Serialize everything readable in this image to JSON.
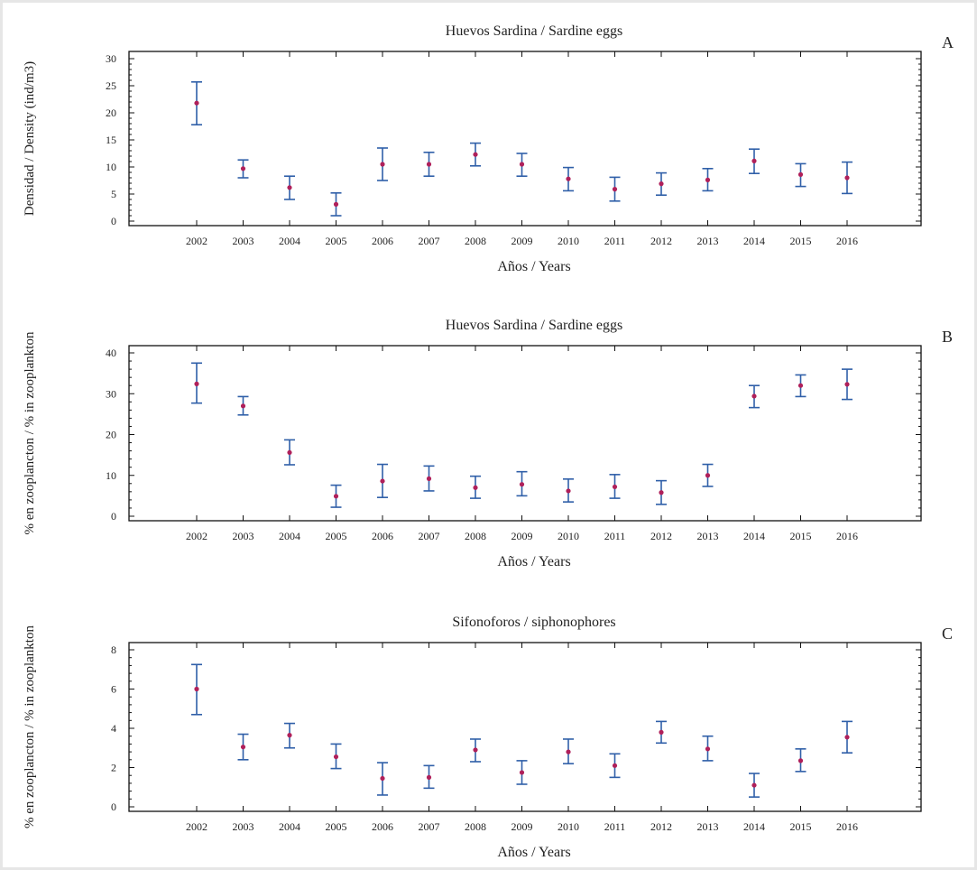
{
  "chart_data": [
    {
      "type": "scatter",
      "panel": "A",
      "title": "Huevos Sardina / Sardine eggs",
      "xlabel": "Años / Years",
      "ylabel": "Densidad / Density (ind/m3)",
      "categories": [
        "2002",
        "2003",
        "2004",
        "2005",
        "2006",
        "2007",
        "2008",
        "2009",
        "2010",
        "2011",
        "2012",
        "2013",
        "2014",
        "2015",
        "2016"
      ],
      "ylim": [
        0,
        30
      ],
      "yticks": [
        0,
        5,
        10,
        15,
        20,
        25,
        30
      ],
      "series": [
        {
          "mean": [
            21.8,
            9.7,
            6.2,
            3.1,
            10.5,
            10.5,
            12.3,
            10.5,
            7.8,
            5.9,
            6.9,
            7.6,
            11.1,
            8.6,
            8.0
          ],
          "lower": [
            17.8,
            8.0,
            4.0,
            1.0,
            7.5,
            8.3,
            10.2,
            8.3,
            5.6,
            3.7,
            4.8,
            5.6,
            8.8,
            6.4,
            5.1
          ],
          "upper": [
            25.7,
            11.3,
            8.3,
            5.2,
            13.5,
            12.7,
            14.4,
            12.5,
            9.9,
            8.1,
            8.9,
            9.7,
            13.3,
            10.6,
            10.9
          ]
        }
      ],
      "grid": false
    },
    {
      "type": "scatter",
      "panel": "B",
      "title": "Huevos Sardina / Sardine eggs",
      "xlabel": "Años / Years",
      "ylabel": "% en zooplancton / % in zooplankton",
      "categories": [
        "2002",
        "2003",
        "2004",
        "2005",
        "2006",
        "2007",
        "2008",
        "2009",
        "2010",
        "2011",
        "2012",
        "2013",
        "2014",
        "2015",
        "2016"
      ],
      "ylim": [
        0,
        40
      ],
      "yticks": [
        0,
        10,
        20,
        30,
        40
      ],
      "series": [
        {
          "mean": [
            32.4,
            27.0,
            15.6,
            4.9,
            8.6,
            9.2,
            7.0,
            7.8,
            6.2,
            7.2,
            5.8,
            10.0,
            29.4,
            32.0,
            32.3
          ],
          "lower": [
            27.7,
            24.8,
            12.6,
            2.2,
            4.6,
            6.2,
            4.4,
            5.0,
            3.5,
            4.4,
            2.9,
            7.3,
            26.6,
            29.3,
            28.6
          ],
          "upper": [
            37.5,
            29.3,
            18.7,
            7.6,
            12.7,
            12.3,
            9.8,
            10.9,
            9.1,
            10.2,
            8.7,
            12.7,
            32.0,
            34.6,
            36.0
          ]
        }
      ],
      "grid": false
    },
    {
      "type": "scatter",
      "panel": "C",
      "title": "Sifonoforos / siphonophores",
      "xlabel": "Años / Years",
      "ylabel": "% en zooplancton / % in zooplankton",
      "categories": [
        "2002",
        "2003",
        "2004",
        "2005",
        "2006",
        "2007",
        "2008",
        "2009",
        "2010",
        "2011",
        "2012",
        "2013",
        "2014",
        "2015",
        "2016"
      ],
      "ylim": [
        0,
        8
      ],
      "yticks": [
        0,
        2,
        4,
        6,
        8
      ],
      "series": [
        {
          "mean": [
            6.0,
            3.05,
            3.65,
            2.55,
            1.45,
            1.5,
            2.9,
            1.75,
            2.8,
            2.1,
            3.8,
            2.95,
            1.1,
            2.35,
            3.55
          ],
          "lower": [
            4.7,
            2.4,
            3.0,
            1.95,
            0.6,
            0.95,
            2.3,
            1.15,
            2.2,
            1.5,
            3.25,
            2.35,
            0.5,
            1.8,
            2.75
          ],
          "upper": [
            7.25,
            3.7,
            4.25,
            3.2,
            2.25,
            2.1,
            3.45,
            2.35,
            3.45,
            2.7,
            4.35,
            3.6,
            1.7,
            2.95,
            4.35
          ]
        }
      ],
      "grid": false
    }
  ]
}
